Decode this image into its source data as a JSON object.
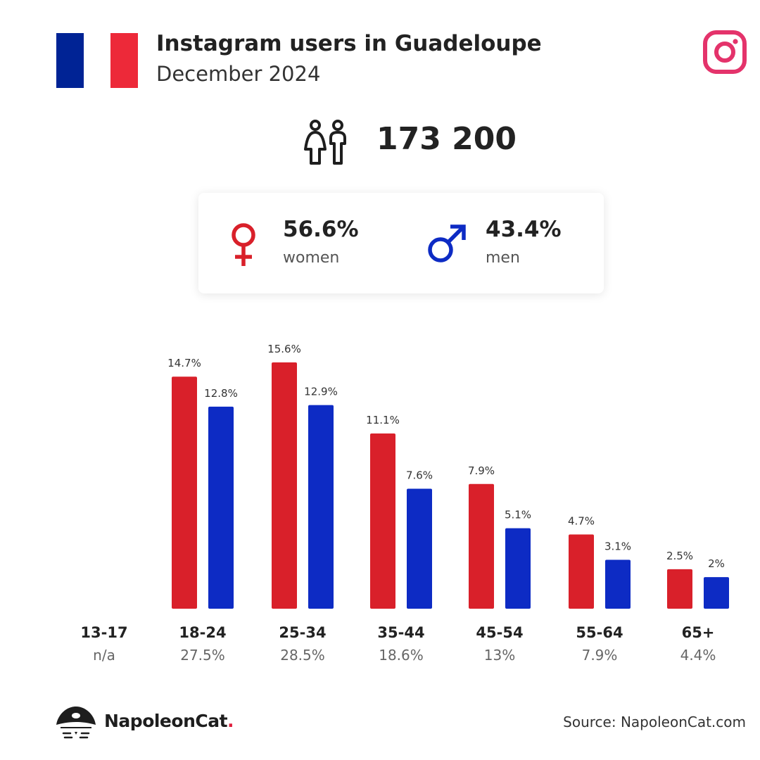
{
  "header": {
    "title": "Instagram users in Guadeloupe",
    "subtitle": "December 2024"
  },
  "flag": {
    "colors": [
      "#002395",
      "#ffffff",
      "#ed2939"
    ]
  },
  "total": {
    "value": "173 200",
    "icon": "people-icon"
  },
  "gender": {
    "women": {
      "value": "56.6%",
      "label": "women",
      "icon": "female-symbol-icon",
      "color": "#d9202a"
    },
    "men": {
      "value": "43.4%",
      "label": "men",
      "icon": "male-symbol-icon",
      "color": "#0d2bc4"
    }
  },
  "chart_data": {
    "type": "bar",
    "categories": [
      "13-17",
      "18-24",
      "25-34",
      "35-44",
      "45-54",
      "55-64",
      "65+"
    ],
    "category_totals": [
      "n/a",
      "27.5%",
      "28.5%",
      "18.6%",
      "13%",
      "7.9%",
      "4.4%"
    ],
    "series": [
      {
        "values": [
          null,
          14.7,
          15.6,
          11.1,
          7.9,
          4.7,
          2.5
        ],
        "labels": [
          "",
          "14.7%",
          "15.6%",
          "11.1%",
          "7.9%",
          "4.7%",
          "2.5%"
        ],
        "color": "#d9202a"
      },
      {
        "values": [
          null,
          12.8,
          12.9,
          7.6,
          5.1,
          3.1,
          2.0
        ],
        "labels": [
          "",
          "12.8%",
          "12.9%",
          "7.6%",
          "5.1%",
          "3.1%",
          "2%"
        ],
        "color": "#0d2bc4"
      }
    ],
    "ylim": [
      0,
      15.6
    ],
    "grid": false,
    "legend": "none"
  },
  "footer": {
    "brand_name": "NapoleonCat",
    "brand_dot": ".",
    "source": "Source: NapoleonCat.com"
  }
}
